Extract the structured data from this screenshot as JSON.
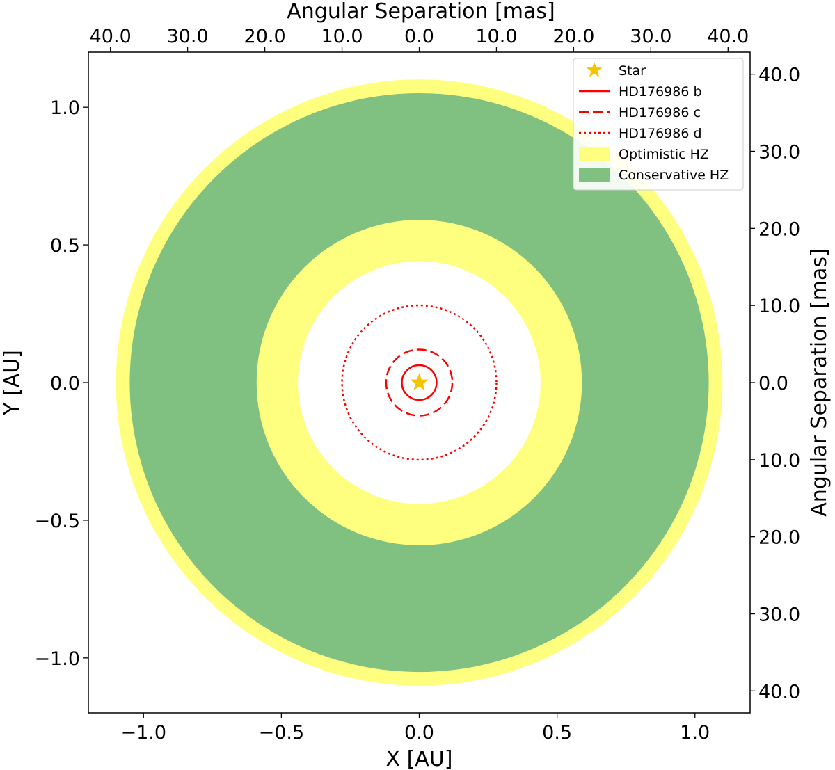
{
  "chart_data": {
    "type": "scatter",
    "x_axis": {
      "label": "X [AU]",
      "lim": [
        -1.2,
        1.2
      ],
      "ticks": [
        -1.0,
        -0.5,
        0.0,
        0.5,
        1.0
      ],
      "tick_labels": [
        "−1.0",
        "−0.5",
        "0.0",
        "0.5",
        "1.0"
      ]
    },
    "y_axis": {
      "label": "Y [AU]",
      "lim": [
        -1.2,
        1.2
      ],
      "ticks": [
        1.0,
        0.5,
        0.0,
        -0.5,
        -1.0
      ],
      "tick_labels": [
        "1.0",
        "0.5",
        "0.0",
        "−0.5",
        "−1.0"
      ]
    },
    "top_axis": {
      "label": "Angular Separation [mas]",
      "tick_positions_au": [
        -1.12,
        -0.84,
        -0.56,
        -0.28,
        0.0,
        0.28,
        0.56,
        0.84,
        1.12
      ],
      "tick_labels": [
        "40.0",
        "30.0",
        "20.0",
        "10.0",
        "0.0",
        "10.0",
        "20.0",
        "30.0",
        "40.0"
      ]
    },
    "right_axis": {
      "label": "Angular Separation [mas]",
      "tick_positions_au": [
        1.12,
        0.84,
        0.56,
        0.28,
        0.0,
        -0.28,
        -0.56,
        -0.84,
        -1.12
      ],
      "tick_labels": [
        "40.0",
        "30.0",
        "20.0",
        "10.0",
        "0.0",
        "10.0",
        "20.0",
        "30.0",
        "40.0"
      ]
    },
    "star": {
      "name": "Star",
      "x": 0.0,
      "y": 0.0,
      "color": "#f5c400"
    },
    "orbits": [
      {
        "name": "HD176986 b",
        "radius_au": 0.063,
        "style": "solid",
        "color": "#ff0000"
      },
      {
        "name": "HD176986 c",
        "radius_au": 0.12,
        "style": "dashed",
        "color": "#ff0000"
      },
      {
        "name": "HD176986 d",
        "radius_au": 0.28,
        "style": "dotted",
        "color": "#ff0000"
      }
    ],
    "zones": [
      {
        "name": "Optimistic HZ",
        "inner_au": 0.44,
        "outer_au": 1.1,
        "color": "#ffff7f"
      },
      {
        "name": "Conservative HZ",
        "inner_au": 0.59,
        "outer_au": 1.05,
        "color": "#80c080"
      }
    ],
    "legend": {
      "location": "upper right",
      "items": [
        "Star",
        "HD176986 b",
        "HD176986 c",
        "HD176986 d",
        "Optimistic HZ",
        "Conservative HZ"
      ]
    }
  }
}
